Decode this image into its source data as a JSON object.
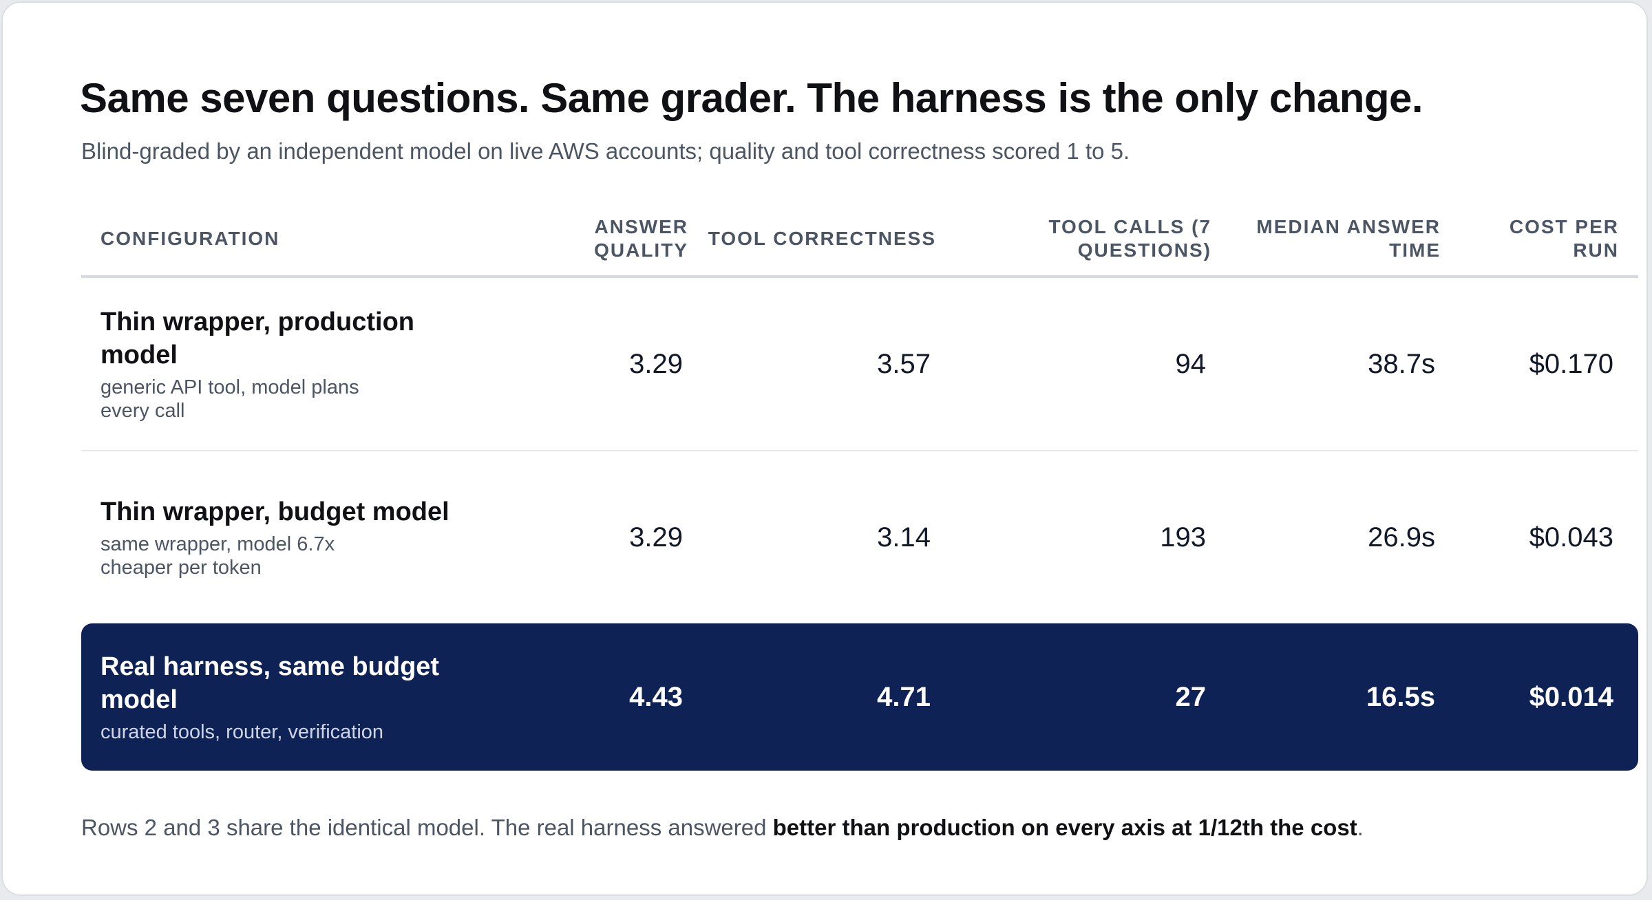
{
  "title": "Same seven questions. Same grader. The harness is the only change.",
  "subtitle": "Blind-graded by an independent model on live AWS accounts; quality and tool correctness scored 1 to 5.",
  "footer": {
    "prefix": "Rows 2 and 3 share the identical model. The real harness answered ",
    "bold": "better than production on every axis at 1/12th the cost",
    "suffix": "."
  },
  "colors": {
    "highlight_row_bg": "#0f2255",
    "header_text": "#4b5563"
  },
  "chart_data": {
    "type": "table",
    "columns": [
      "CONFIGURATION",
      "ANSWER QUALITY",
      "TOOL CORRECTNESS",
      "TOOL CALLS (7 QUESTIONS)",
      "MEDIAN ANSWER TIME",
      "COST PER RUN"
    ],
    "rows": [
      {
        "name": "Thin wrapper, production model",
        "description": "generic API tool, model plans every call",
        "answer_quality": "3.29",
        "tool_correctness": "3.57",
        "tool_calls": "94",
        "median_answer_time": "38.7s",
        "cost_per_run": "$0.170",
        "highlighted": false
      },
      {
        "name": "Thin wrapper, budget model",
        "description": "same wrapper, model 6.7x cheaper per token",
        "answer_quality": "3.29",
        "tool_correctness": "3.14",
        "tool_calls": "193",
        "median_answer_time": "26.9s",
        "cost_per_run": "$0.043",
        "highlighted": false
      },
      {
        "name": "Real harness, same budget model",
        "description": "curated tools, router, verification",
        "answer_quality": "4.43",
        "tool_correctness": "4.71",
        "tool_calls": "27",
        "median_answer_time": "16.5s",
        "cost_per_run": "$0.014",
        "highlighted": true
      }
    ]
  }
}
